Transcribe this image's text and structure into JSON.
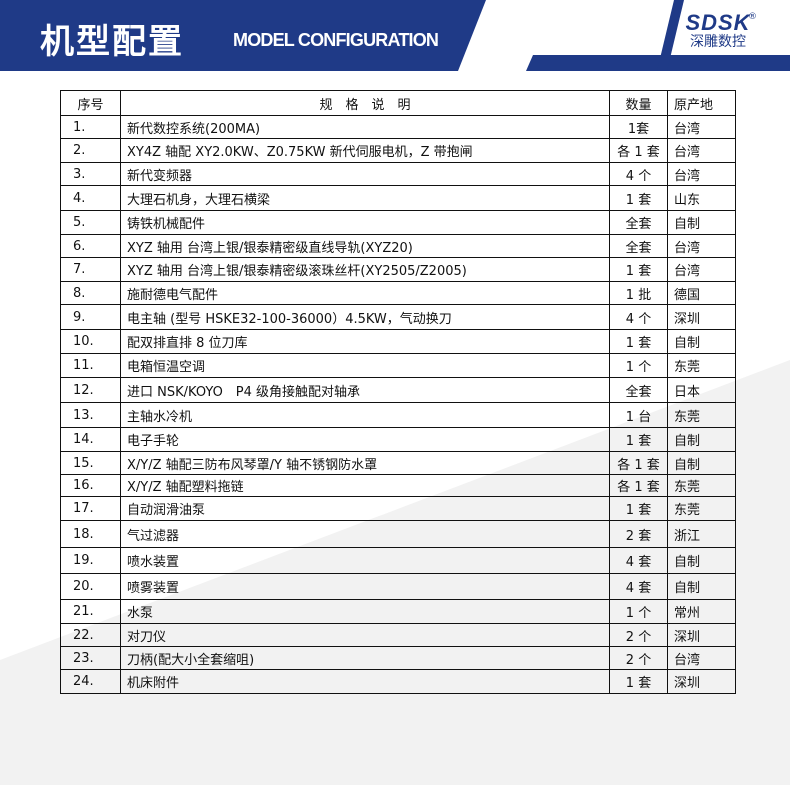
{
  "header": {
    "title_cn": "机型配置",
    "title_en": "MODEL CONFIGURATION",
    "logo_en": "SDSK",
    "logo_cn": "深雕数控",
    "registered": "®"
  },
  "colors": {
    "brand_blue": "#1f3a87"
  },
  "table": {
    "columns": [
      "序号",
      "规　格　说　明",
      "数量",
      "原产地"
    ],
    "rows": [
      [
        "1.",
        "新代数控系统(200MA)",
        "1套",
        "台湾"
      ],
      [
        "2.",
        "XY4Z 轴配 XY2.0KW、Z0.75KW 新代伺服电机，Z 带抱闸",
        "各 1 套",
        "台湾"
      ],
      [
        "3.",
        "新代变频器",
        "4 个",
        "台湾"
      ],
      [
        "4.",
        "大理石机身，大理石横梁",
        "1 套",
        "山东"
      ],
      [
        "5.",
        "铸铁机械配件",
        "全套",
        "自制"
      ],
      [
        "6.",
        "XYZ 轴用 台湾上银/银泰精密级直线导轨(XYZ20)",
        "全套",
        "台湾"
      ],
      [
        "7.",
        "XYZ 轴用 台湾上银/银泰精密级滚珠丝杆(XY2505/Z2005)",
        "1 套",
        "台湾"
      ],
      [
        "8.",
        "施耐德电气配件",
        "1 批",
        "德国"
      ],
      [
        "9.",
        "电主轴 (型号 HSKE32-100-36000）4.5KW，气动换刀",
        "4 个",
        "深圳"
      ],
      [
        "10.",
        "配双排直排 8 位刀库",
        "1 套",
        "自制"
      ],
      [
        "11.",
        "电箱恒温空调",
        "1 个",
        "东莞"
      ],
      [
        "12.",
        "进口 NSK/KOYO　P4 级角接触配对轴承",
        "全套",
        "日本"
      ],
      [
        "13.",
        "主轴水冷机",
        "1 台",
        "东莞"
      ],
      [
        "14.",
        "电子手轮",
        "1 套",
        "自制"
      ],
      [
        "15.",
        "X/Y/Z 轴配三防布风琴罩/Y 轴不锈钢防水罩",
        "各 1 套",
        "自制"
      ],
      [
        "16.",
        "X/Y/Z 轴配塑料拖链",
        "各 1 套",
        "东莞"
      ],
      [
        "17.",
        "自动润滑油泵",
        "1 套",
        "东莞"
      ],
      [
        "18.",
        "气过滤器",
        "2 套",
        "浙江"
      ],
      [
        "19.",
        "喷水装置",
        "4 套",
        "自制"
      ],
      [
        "20.",
        "喷雾装置",
        "4 套",
        "自制"
      ],
      [
        "21.",
        "水泵",
        "1 个",
        "常州"
      ],
      [
        "22.",
        "对刀仪",
        "2 个",
        "深圳"
      ],
      [
        "23.",
        "刀柄(配大小全套缩咀)",
        "2 个",
        "台湾"
      ],
      [
        "24.",
        "机床附件",
        "1 套",
        "深圳"
      ]
    ]
  }
}
